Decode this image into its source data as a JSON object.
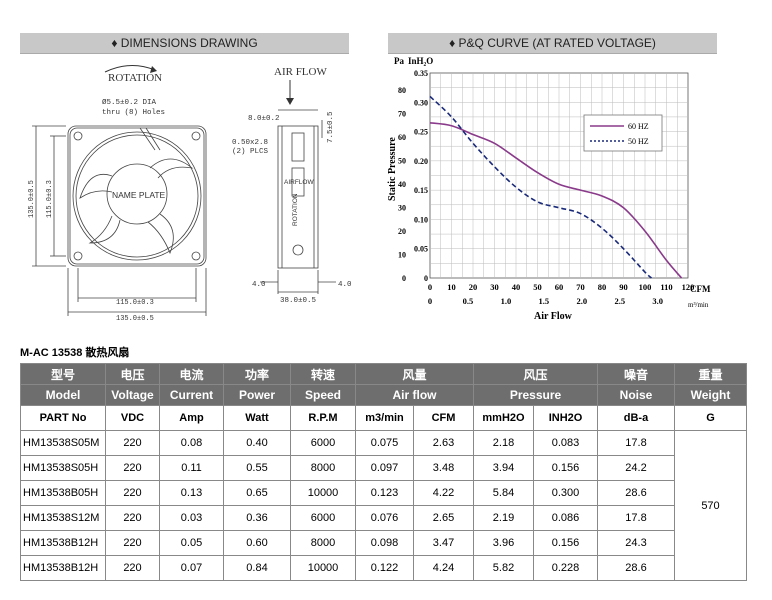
{
  "headers": {
    "dimensions": "♦ DIMENSIONS DRAWING",
    "pq": "♦ P&Q CURVE (AT RATED VOLTAGE)"
  },
  "drawing": {
    "rotation": "ROTATION",
    "airflow": "AIR FLOW",
    "hole_note1": "Ø5.5±0.2 DIA",
    "hole_note2": "thru (8) Holes",
    "name_plate": "NAME PLATE",
    "dim_top1": "8.0±0.2",
    "dim_side": "7.5±0.5",
    "dim_plcs1": "0.50x2.8",
    "dim_plcs2": "(2) PLCS",
    "dim_v_outer": "135.0±0.5",
    "dim_v_inner": "115.0±0.3",
    "dim_h_inner": "115.0±0.3",
    "dim_h_outer": "135.0±0.5",
    "dim_4a": "4.0",
    "dim_4b": "4.0",
    "dim_depth": "38.0±0.5",
    "side_airflow": "AIRFLOW",
    "side_rotation": "ROTATION"
  },
  "chart_data": {
    "type": "line",
    "ylabel": "Static Pressure",
    "y_units_left": "Pa",
    "y_units_right": "InH₂O",
    "xlabel": "Air Flow",
    "x_units_top": "CFM",
    "x_units_bottom": "m³/min",
    "x_cfm_ticks": [
      "0",
      "10",
      "20",
      "30",
      "40",
      "50",
      "60",
      "70",
      "80",
      "90",
      "100",
      "110",
      "120"
    ],
    "x_m3_ticks": [
      "0",
      "0.5",
      "1.0",
      "1.5",
      "2.0",
      "2.5",
      "3.0"
    ],
    "y_pa_ticks": [
      "0",
      "10",
      "20",
      "30",
      "40",
      "50",
      "60",
      "70",
      "80"
    ],
    "y_inh2o_ticks": [
      "0",
      "0.05",
      "0.10",
      "0.15",
      "0.20",
      "0.25",
      "0.30",
      "0.35"
    ],
    "xlim": [
      0,
      120
    ],
    "ylim_inh2o": [
      0,
      0.35
    ],
    "legend_position": "top-right",
    "series": [
      {
        "name": "60 HZ",
        "style": "solid",
        "color": "#8a3a8a",
        "x": [
          0,
          10,
          20,
          30,
          40,
          50,
          60,
          70,
          80,
          90,
          100,
          110,
          117
        ],
        "y": [
          0.265,
          0.26,
          0.245,
          0.23,
          0.205,
          0.18,
          0.16,
          0.15,
          0.14,
          0.12,
          0.08,
          0.03,
          0
        ]
      },
      {
        "name": "50 HZ",
        "style": "dashed",
        "color": "#1a2a7a",
        "x": [
          0,
          10,
          20,
          30,
          40,
          50,
          60,
          70,
          80,
          90,
          100,
          103
        ],
        "y": [
          0.31,
          0.275,
          0.23,
          0.19,
          0.155,
          0.13,
          0.12,
          0.11,
          0.085,
          0.05,
          0.01,
          0
        ]
      }
    ]
  },
  "subtitle": "M-AC 13538 散热风扇",
  "table": {
    "head_cn": [
      "型号",
      "电压",
      "电流",
      "功率",
      "转速",
      "风量",
      "风压",
      "噪音",
      "重量"
    ],
    "head_en": [
      "Model",
      "Voltage",
      "Current",
      "Power",
      "Speed",
      "Air flow",
      "Pressure",
      "Noise",
      "Weight"
    ],
    "units": [
      "PART No",
      "VDC",
      "Amp",
      "Watt",
      "R.P.M",
      "m3/min",
      "CFM",
      "mmH2O",
      "INH2O",
      "dB-a",
      "G"
    ],
    "rows": [
      [
        "HM13538S05M",
        "220",
        "0.08",
        "0.40",
        "6000",
        "0.075",
        "2.63",
        "2.18",
        "0.083",
        "17.8"
      ],
      [
        "HM13538S05H",
        "220",
        "0.11",
        "0.55",
        "8000",
        "0.097",
        "3.48",
        "3.94",
        "0.156",
        "24.2"
      ],
      [
        "HM13538B05H",
        "220",
        "0.13",
        "0.65",
        "10000",
        "0.123",
        "4.22",
        "5.84",
        "0.300",
        "28.6"
      ],
      [
        "HM13538S12M",
        "220",
        "0.03",
        "0.36",
        "6000",
        "0.076",
        "2.65",
        "2.19",
        "0.086",
        "17.8"
      ],
      [
        "HM13538B12H",
        "220",
        "0.05",
        "0.60",
        "8000",
        "0.098",
        "3.47",
        "3.96",
        "0.156",
        "24.3"
      ],
      [
        "HM13538B12H",
        "220",
        "0.07",
        "0.84",
        "10000",
        "0.122",
        "4.24",
        "5.82",
        "0.228",
        "28.6"
      ]
    ],
    "weight": "570"
  }
}
